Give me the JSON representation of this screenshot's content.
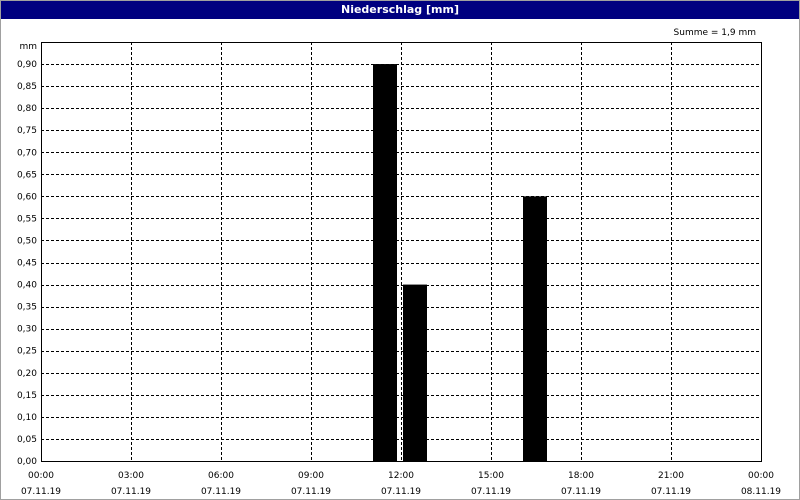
{
  "window": {
    "title": "Niederschlag [mm]"
  },
  "chart_data": {
    "type": "bar",
    "title": "Niederschlag [mm]",
    "ylabel": "mm",
    "annotation": "Summe = 1,9 mm",
    "ylim": [
      0,
      0.95
    ],
    "yticks": [
      0.0,
      0.05,
      0.1,
      0.15,
      0.2,
      0.25,
      0.3,
      0.35,
      0.4,
      0.45,
      0.5,
      0.55,
      0.6,
      0.65,
      0.7,
      0.75,
      0.8,
      0.85,
      0.9
    ],
    "ytick_labels": [
      "0,00",
      "0,05",
      "0,10",
      "0,15",
      "0,20",
      "0,25",
      "0,30",
      "0,35",
      "0,40",
      "0,45",
      "0,50",
      "0,55",
      "0,60",
      "0,65",
      "0,70",
      "0,75",
      "0,80",
      "0,85",
      "0,90"
    ],
    "xlim_hours": [
      0,
      24
    ],
    "xticks": [
      {
        "hour": 0,
        "time": "00:00",
        "date": "07.11.19"
      },
      {
        "hour": 3,
        "time": "03:00",
        "date": "07.11.19"
      },
      {
        "hour": 6,
        "time": "06:00",
        "date": "07.11.19"
      },
      {
        "hour": 9,
        "time": "09:00",
        "date": "07.11.19"
      },
      {
        "hour": 12,
        "time": "12:00",
        "date": "07.11.19"
      },
      {
        "hour": 15,
        "time": "15:00",
        "date": "07.11.19"
      },
      {
        "hour": 18,
        "time": "18:00",
        "date": "07.11.19"
      },
      {
        "hour": 21,
        "time": "21:00",
        "date": "07.11.19"
      },
      {
        "hour": 24,
        "time": "00:00",
        "date": "08.11.19"
      }
    ],
    "bars": [
      {
        "start_hour": 11,
        "end_hour": 12,
        "value": 0.9
      },
      {
        "start_hour": 12,
        "end_hour": 13,
        "value": 0.4
      },
      {
        "start_hour": 16,
        "end_hour": 17,
        "value": 0.6
      }
    ],
    "grid": true,
    "bar_color": "#000000"
  }
}
